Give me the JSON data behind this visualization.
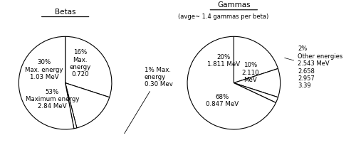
{
  "betas_title": "Betas",
  "betas_sizes": [
    30,
    16,
    1,
    53
  ],
  "betas_colors": [
    "#ffffff",
    "#ffffff",
    "#ffffff",
    "#ffffff"
  ],
  "betas_labels_internal": [
    "30%\nMax. energy\n1.03 MeV",
    "16%\nMax.\nenergy\n0.720",
    "",
    "53%\nMaximum energy\n2.84 MeV"
  ],
  "betas_label_external": "1% Max.\nenergy\n0.30 Mev",
  "gammas_title": "Gammas",
  "gammas_subtitle": "(avge~ 1.4 gammas per beta)",
  "gammas_sizes": [
    20,
    10,
    2,
    68
  ],
  "gammas_colors": [
    "#ffffff",
    "#ffffff",
    "#ffffff",
    "#ffffff"
  ],
  "gammas_labels_internal": [
    "20%\n1.811 MeV",
    "10%\n2.110\nMeV",
    "",
    "68%\n0.847 MeV"
  ],
  "gammas_label_external": "2%\nOther energies\n2.543 MeV\n2.658\n2.957\n3.39",
  "edge_color": "#000000",
  "text_color": "#000000",
  "background_color": "#ffffff"
}
